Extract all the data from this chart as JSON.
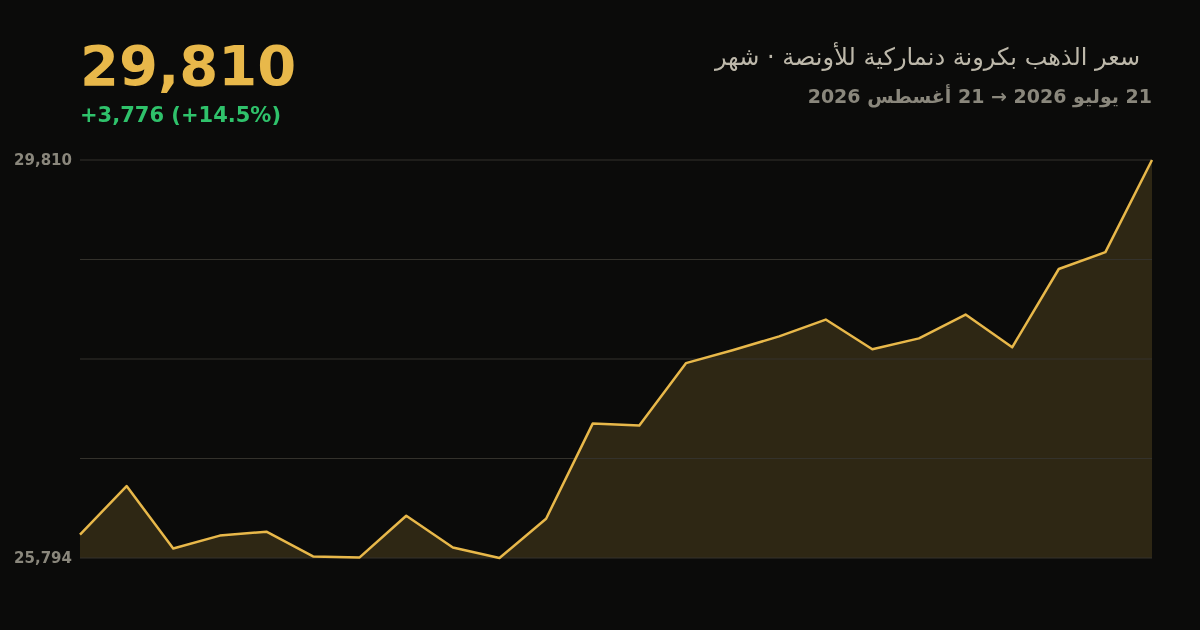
{
  "chart_data": {
    "type": "area",
    "title": "سعر الذهب بكرونة دنماركية للأونصة · شهر",
    "subtitle": "21 يوليو 2026 → 21 أغسطس 2026",
    "annotations": [
      "29,810",
      "+3,776 (+14.5%)"
    ],
    "categories": [
      null,
      null,
      null,
      null,
      null,
      null,
      null,
      null,
      null,
      null,
      null,
      null,
      null,
      null,
      null,
      null,
      null,
      null,
      null,
      null,
      null,
      null,
      null,
      null
    ],
    "values": [
      26030,
      26520,
      25890,
      26020,
      26060,
      25810,
      25800,
      26220,
      25900,
      25794,
      26190,
      27150,
      27130,
      27760,
      27890,
      28030,
      28200,
      27900,
      28010,
      28250,
      27920,
      28710,
      28880,
      29810
    ],
    "color": "#e8b84a",
    "ylim": [
      25794,
      29810
    ],
    "yticks": [
      {
        "value": 25794,
        "label": "25,794"
      },
      {
        "value": 26798,
        "label": null
      },
      {
        "value": 27802,
        "label": null
      },
      {
        "value": 28806,
        "label": null
      },
      {
        "value": 29810,
        "label": "29,810"
      }
    ],
    "grid": "y"
  }
}
